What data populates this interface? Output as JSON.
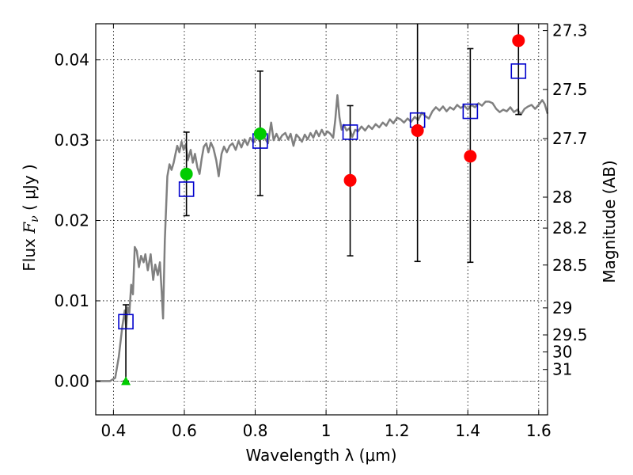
{
  "chart_data": {
    "type": "scatter",
    "xlabel": "Wavelength  λ (μm)",
    "ylabel_prefix": "Flux  ",
    "ylabel_symbol": "F",
    "ylabel_sub": "ν",
    "ylabel_suffix": "  ( μJy )",
    "y2label": "Magnitude (AB)",
    "xlim": [
      0.35,
      1.625
    ],
    "ylim": [
      -0.0042,
      0.0445
    ],
    "x_ticks": [
      {
        "value": 0.4,
        "label": "0.4"
      },
      {
        "value": 0.6,
        "label": "0.6"
      },
      {
        "value": 0.8,
        "label": "0.8"
      },
      {
        "value": 1.0,
        "label": "1"
      },
      {
        "value": 1.2,
        "label": "1.2"
      },
      {
        "value": 1.4,
        "label": "1.4"
      },
      {
        "value": 1.6,
        "label": "1.6"
      }
    ],
    "y_ticks": [
      {
        "value": 0.0,
        "label": "0.00"
      },
      {
        "value": 0.01,
        "label": "0.01"
      },
      {
        "value": 0.02,
        "label": "0.02"
      },
      {
        "value": 0.03,
        "label": "0.03"
      },
      {
        "value": 0.04,
        "label": "0.04"
      }
    ],
    "mag_ticks": [
      {
        "value": 27.3,
        "label": "27.3"
      },
      {
        "value": 27.5,
        "label": "27.5"
      },
      {
        "value": 27.7,
        "label": "27.7"
      },
      {
        "value": 28,
        "label": "28"
      },
      {
        "value": 28.2,
        "label": "28.2"
      },
      {
        "value": 28.5,
        "label": "28.5"
      },
      {
        "value": 29,
        "label": "29"
      },
      {
        "value": 29.5,
        "label": "29.5"
      },
      {
        "value": 30,
        "label": "30"
      },
      {
        "value": 31,
        "label": "31"
      }
    ],
    "grid": true,
    "colors": {
      "model": "#808080",
      "detection_red": "#ff0000",
      "detection_green": "#00cc00",
      "model_photometry": "#0000cc",
      "error_bar": "#000000",
      "zero_line": "#666666"
    },
    "model_spectrum": [
      [
        0.35,
        0.0
      ],
      [
        0.39,
        0.0
      ],
      [
        0.405,
        0.0004
      ],
      [
        0.415,
        0.003
      ],
      [
        0.425,
        0.0068
      ],
      [
        0.432,
        0.0088
      ],
      [
        0.436,
        0.0066
      ],
      [
        0.44,
        0.0092
      ],
      [
        0.445,
        0.0085
      ],
      [
        0.45,
        0.012
      ],
      [
        0.455,
        0.0108
      ],
      [
        0.46,
        0.0167
      ],
      [
        0.466,
        0.0162
      ],
      [
        0.472,
        0.0142
      ],
      [
        0.478,
        0.0156
      ],
      [
        0.485,
        0.0148
      ],
      [
        0.49,
        0.0158
      ],
      [
        0.497,
        0.0138
      ],
      [
        0.505,
        0.0158
      ],
      [
        0.512,
        0.0126
      ],
      [
        0.518,
        0.0145
      ],
      [
        0.525,
        0.0132
      ],
      [
        0.531,
        0.0148
      ],
      [
        0.536,
        0.0112
      ],
      [
        0.54,
        0.0078
      ],
      [
        0.545,
        0.0175
      ],
      [
        0.552,
        0.0255
      ],
      [
        0.558,
        0.027
      ],
      [
        0.564,
        0.0263
      ],
      [
        0.57,
        0.0272
      ],
      [
        0.575,
        0.0283
      ],
      [
        0.58,
        0.0293
      ],
      [
        0.586,
        0.0285
      ],
      [
        0.592,
        0.0298
      ],
      [
        0.598,
        0.0288
      ],
      [
        0.604,
        0.0295
      ],
      [
        0.61,
        0.0275
      ],
      [
        0.618,
        0.0288
      ],
      [
        0.624,
        0.0272
      ],
      [
        0.63,
        0.0283
      ],
      [
        0.637,
        0.0266
      ],
      [
        0.643,
        0.0258
      ],
      [
        0.649,
        0.0277
      ],
      [
        0.655,
        0.0292
      ],
      [
        0.662,
        0.0296
      ],
      [
        0.668,
        0.0285
      ],
      [
        0.675,
        0.0297
      ],
      [
        0.682,
        0.029
      ],
      [
        0.69,
        0.0275
      ],
      [
        0.697,
        0.0255
      ],
      [
        0.705,
        0.0283
      ],
      [
        0.712,
        0.0292
      ],
      [
        0.72,
        0.0285
      ],
      [
        0.728,
        0.0293
      ],
      [
        0.736,
        0.0296
      ],
      [
        0.745,
        0.0288
      ],
      [
        0.753,
        0.0299
      ],
      [
        0.761,
        0.0291
      ],
      [
        0.77,
        0.0301
      ],
      [
        0.778,
        0.0294
      ],
      [
        0.786,
        0.0303
      ],
      [
        0.795,
        0.0297
      ],
      [
        0.803,
        0.0306
      ],
      [
        0.812,
        0.0299
      ],
      [
        0.82,
        0.0307
      ],
      [
        0.828,
        0.0302
      ],
      [
        0.836,
        0.0296
      ],
      [
        0.845,
        0.0322
      ],
      [
        0.852,
        0.03
      ],
      [
        0.86,
        0.0308
      ],
      [
        0.868,
        0.03
      ],
      [
        0.876,
        0.0306
      ],
      [
        0.885,
        0.0309
      ],
      [
        0.893,
        0.0301
      ],
      [
        0.9,
        0.0308
      ],
      [
        0.908,
        0.0293
      ],
      [
        0.916,
        0.0307
      ],
      [
        0.924,
        0.0303
      ],
      [
        0.932,
        0.0298
      ],
      [
        0.94,
        0.0307
      ],
      [
        0.948,
        0.0301
      ],
      [
        0.956,
        0.0309
      ],
      [
        0.964,
        0.0303
      ],
      [
        0.972,
        0.0312
      ],
      [
        0.98,
        0.0305
      ],
      [
        0.988,
        0.0313
      ],
      [
        0.996,
        0.0306
      ],
      [
        1.004,
        0.0311
      ],
      [
        1.012,
        0.0308
      ],
      [
        1.02,
        0.0303
      ],
      [
        1.026,
        0.0325
      ],
      [
        1.032,
        0.0356
      ],
      [
        1.038,
        0.0328
      ],
      [
        1.044,
        0.0313
      ],
      [
        1.05,
        0.0319
      ],
      [
        1.058,
        0.0312
      ],
      [
        1.066,
        0.0315
      ],
      [
        1.074,
        0.0304
      ],
      [
        1.082,
        0.0313
      ],
      [
        1.09,
        0.0311
      ],
      [
        1.1,
        0.0317
      ],
      [
        1.11,
        0.0312
      ],
      [
        1.12,
        0.0318
      ],
      [
        1.13,
        0.0314
      ],
      [
        1.14,
        0.032
      ],
      [
        1.15,
        0.0316
      ],
      [
        1.16,
        0.0322
      ],
      [
        1.17,
        0.0318
      ],
      [
        1.18,
        0.0326
      ],
      [
        1.19,
        0.0321
      ],
      [
        1.2,
        0.0328
      ],
      [
        1.21,
        0.0326
      ],
      [
        1.22,
        0.0322
      ],
      [
        1.23,
        0.0327
      ],
      [
        1.24,
        0.0323
      ],
      [
        1.25,
        0.0329
      ],
      [
        1.26,
        0.0325
      ],
      [
        1.27,
        0.0334
      ],
      [
        1.28,
        0.033
      ],
      [
        1.29,
        0.0327
      ],
      [
        1.3,
        0.0336
      ],
      [
        1.31,
        0.0341
      ],
      [
        1.32,
        0.0337
      ],
      [
        1.33,
        0.0342
      ],
      [
        1.34,
        0.0336
      ],
      [
        1.35,
        0.0341
      ],
      [
        1.36,
        0.0338
      ],
      [
        1.37,
        0.0344
      ],
      [
        1.38,
        0.034
      ],
      [
        1.39,
        0.0343
      ],
      [
        1.4,
        0.0338
      ],
      [
        1.41,
        0.0344
      ],
      [
        1.42,
        0.0341
      ],
      [
        1.43,
        0.0346
      ],
      [
        1.44,
        0.0343
      ],
      [
        1.45,
        0.0348
      ],
      [
        1.46,
        0.0348
      ],
      [
        1.47,
        0.0346
      ],
      [
        1.48,
        0.0339
      ],
      [
        1.49,
        0.0335
      ],
      [
        1.5,
        0.0338
      ],
      [
        1.51,
        0.0336
      ],
      [
        1.52,
        0.0341
      ],
      [
        1.53,
        0.0335
      ],
      [
        1.54,
        0.0338
      ],
      [
        1.55,
        0.0332
      ],
      [
        1.56,
        0.0339
      ],
      [
        1.57,
        0.0342
      ],
      [
        1.58,
        0.0344
      ],
      [
        1.59,
        0.0339
      ],
      [
        1.6,
        0.0344
      ],
      [
        1.61,
        0.035
      ],
      [
        1.617,
        0.0345
      ],
      [
        1.625,
        0.0333
      ]
    ],
    "error_bars": [
      {
        "x": 0.435,
        "y_low": 0.0,
        "y_high": 0.0095
      },
      {
        "x": 0.606,
        "y_low": 0.0206,
        "y_high": 0.031
      },
      {
        "x": 0.814,
        "y_low": 0.0231,
        "y_high": 0.0386
      },
      {
        "x": 1.068,
        "y_low": 0.0156,
        "y_high": 0.0343
      },
      {
        "x": 1.258,
        "y_low": 0.0149,
        "y_high": 0.0445
      },
      {
        "x": 1.407,
        "y_low": 0.0148,
        "y_high": 0.0414
      },
      {
        "x": 1.543,
        "y_low": 0.0332,
        "y_high": 0.0445
      }
    ],
    "detections": [
      {
        "x": 0.606,
        "y": 0.0258,
        "color": "#00cc00"
      },
      {
        "x": 0.814,
        "y": 0.0308,
        "color": "#00cc00"
      },
      {
        "x": 1.068,
        "y": 0.025,
        "color": "#ff0000"
      },
      {
        "x": 1.258,
        "y": 0.0312,
        "color": "#ff0000"
      },
      {
        "x": 1.407,
        "y": 0.028,
        "color": "#ff0000"
      },
      {
        "x": 1.543,
        "y": 0.0424,
        "color": "#ff0000"
      }
    ],
    "upper_limits": [
      {
        "x": 0.435,
        "y": 0.0,
        "color": "#00cc00"
      }
    ],
    "model_photometry": [
      {
        "x": 0.435,
        "y": 0.0074
      },
      {
        "x": 0.606,
        "y": 0.0239
      },
      {
        "x": 0.814,
        "y": 0.0299
      },
      {
        "x": 1.068,
        "y": 0.031
      },
      {
        "x": 1.258,
        "y": 0.0325
      },
      {
        "x": 1.407,
        "y": 0.0336
      },
      {
        "x": 1.543,
        "y": 0.0386
      }
    ]
  }
}
